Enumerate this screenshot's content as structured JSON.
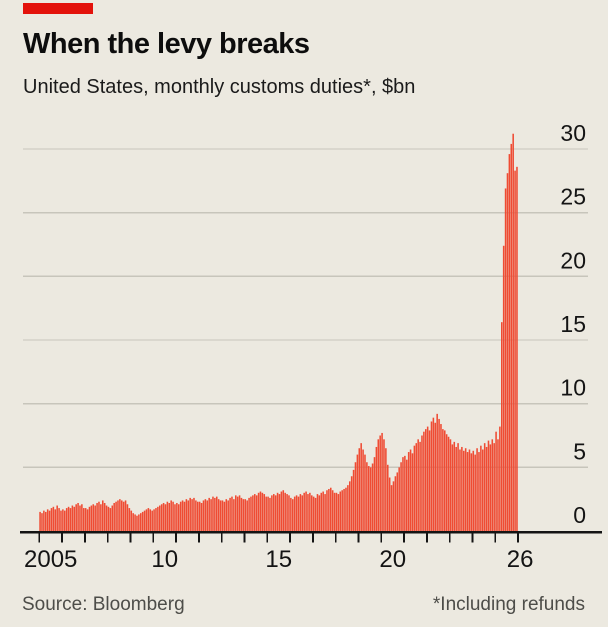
{
  "header": {
    "title": "When the levy breaks",
    "subtitle": "United States, monthly customs duties*, $bn"
  },
  "footer": {
    "source": "Source: Bloomberg",
    "footnote": "*Including refunds"
  },
  "colors": {
    "background": "#ECE9E0",
    "bar": "#EF4B33",
    "brand_tab": "#E3120B",
    "gridline": "#C7C5BB",
    "axis": "#141414",
    "muted_text": "#4D4D49"
  },
  "chart_data": {
    "type": "bar",
    "title": "When the levy breaks",
    "subtitle": "United States, monthly customs duties*, $bn",
    "unit": "$bn",
    "frequency": "monthly",
    "x_range": {
      "start": "2005-01",
      "end": "2025-12"
    },
    "ylim": [
      0,
      31.5
    ],
    "grid": true,
    "legend": "none",
    "y_ticks": [
      0,
      5,
      10,
      15,
      20,
      25,
      30
    ],
    "x_tick_years": [
      2005,
      2006,
      2007,
      2008,
      2009,
      2010,
      2011,
      2012,
      2013,
      2014,
      2015,
      2016,
      2017,
      2018,
      2019,
      2020,
      2021,
      2022,
      2023,
      2024,
      2025,
      2026
    ],
    "x_tick_labels": [
      {
        "year": 2005,
        "text": "2005",
        "anchor": "mid-year"
      },
      {
        "year": 2010,
        "text": "10",
        "anchor": "mid-year"
      },
      {
        "year": 2015,
        "text": "15",
        "anchor": "mid-year"
      },
      {
        "year": 2020,
        "text": "20",
        "anchor": "mid-year"
      },
      {
        "year": 2026,
        "text": "26",
        "anchor": "tick"
      }
    ],
    "years_order": [
      "2005",
      "2006",
      "2007",
      "2008",
      "2009",
      "2010",
      "2011",
      "2012",
      "2013",
      "2014",
      "2015",
      "2016",
      "2017",
      "2018",
      "2019",
      "2020",
      "2021",
      "2022",
      "2023",
      "2024",
      "2025"
    ],
    "series_by_year": {
      "2005": [
        1.5,
        1.4,
        1.6,
        1.5,
        1.7,
        1.6,
        1.8,
        1.9,
        1.7,
        2.0,
        1.8,
        1.6
      ],
      "2006": [
        1.7,
        1.6,
        1.8,
        1.9,
        1.8,
        2.0,
        1.9,
        2.1,
        2.2,
        2.0,
        2.1,
        1.8
      ],
      "2007": [
        1.8,
        1.7,
        1.9,
        2.0,
        2.1,
        2.0,
        2.2,
        2.3,
        2.1,
        2.4,
        2.2,
        2.0
      ],
      "2008": [
        1.9,
        1.8,
        2.0,
        2.2,
        2.3,
        2.4,
        2.5,
        2.4,
        2.3,
        2.4,
        2.1,
        1.8
      ],
      "2009": [
        1.6,
        1.4,
        1.3,
        1.2,
        1.3,
        1.4,
        1.5,
        1.6,
        1.7,
        1.8,
        1.7,
        1.6
      ],
      "2010": [
        1.7,
        1.8,
        1.9,
        2.0,
        2.1,
        2.2,
        2.1,
        2.3,
        2.2,
        2.4,
        2.3,
        2.1
      ],
      "2011": [
        2.2,
        2.1,
        2.3,
        2.4,
        2.3,
        2.5,
        2.4,
        2.6,
        2.5,
        2.6,
        2.4,
        2.3
      ],
      "2012": [
        2.3,
        2.2,
        2.4,
        2.5,
        2.4,
        2.6,
        2.5,
        2.7,
        2.6,
        2.7,
        2.5,
        2.4
      ],
      "2013": [
        2.4,
        2.3,
        2.5,
        2.4,
        2.6,
        2.7,
        2.5,
        2.8,
        2.7,
        2.8,
        2.6,
        2.5
      ],
      "2014": [
        2.5,
        2.4,
        2.6,
        2.7,
        2.8,
        2.9,
        2.8,
        3.0,
        3.1,
        3.0,
        2.9,
        2.7
      ],
      "2015": [
        2.7,
        2.6,
        2.8,
        2.9,
        2.8,
        3.0,
        2.9,
        3.1,
        3.2,
        3.0,
        2.9,
        2.8
      ],
      "2016": [
        2.6,
        2.5,
        2.7,
        2.8,
        2.7,
        2.9,
        2.8,
        3.0,
        3.1,
        2.9,
        3.0,
        2.8
      ],
      "2017": [
        2.7,
        2.6,
        2.9,
        2.8,
        3.0,
        3.1,
        2.9,
        3.2,
        3.3,
        3.4,
        3.2,
        3.0
      ],
      "2018": [
        3.0,
        2.9,
        3.1,
        3.2,
        3.3,
        3.4,
        3.6,
        3.9,
        4.3,
        4.8,
        5.4,
        6.0
      ],
      "2019": [
        6.5,
        6.9,
        6.4,
        6.0,
        5.4,
        5.1,
        5.0,
        5.3,
        5.8,
        6.6,
        7.2,
        7.5
      ],
      "2020": [
        7.7,
        7.2,
        6.5,
        5.2,
        4.2,
        3.6,
        3.9,
        4.3,
        4.6,
        5.0,
        5.4,
        5.8
      ],
      "2021": [
        5.9,
        5.6,
        6.2,
        6.4,
        6.1,
        6.7,
        6.9,
        7.2,
        7.0,
        7.5,
        7.8,
        8.0
      ],
      "2022": [
        8.2,
        7.9,
        8.6,
        8.9,
        8.5,
        9.2,
        8.8,
        8.4,
        8.0,
        7.9,
        7.6,
        7.4
      ],
      "2023": [
        7.2,
        6.8,
        7.0,
        6.6,
        6.9,
        6.4,
        6.6,
        6.3,
        6.5,
        6.2,
        6.4,
        6.1
      ],
      "2024": [
        6.3,
        6.0,
        6.5,
        6.2,
        6.7,
        6.4,
        6.9,
        6.6,
        7.1,
        6.8,
        7.2,
        6.9
      ],
      "2025": [
        7.8,
        7.2,
        8.2,
        16.4,
        22.4,
        26.9,
        28.1,
        29.6,
        30.4,
        31.2,
        28.3,
        28.6
      ]
    }
  }
}
